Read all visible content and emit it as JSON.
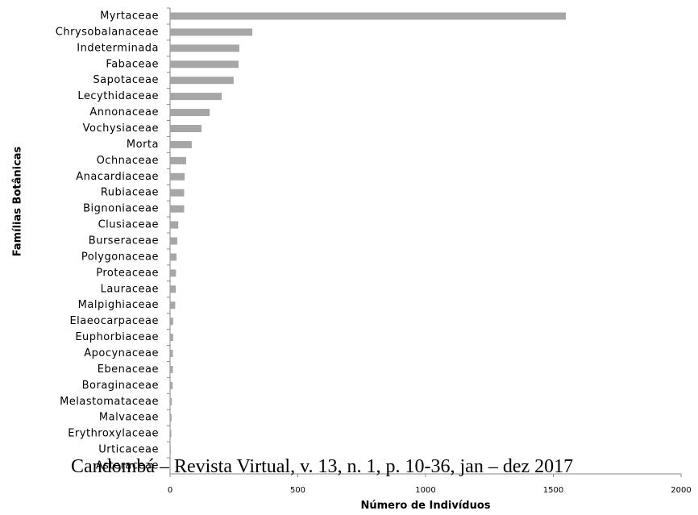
{
  "chart_data": {
    "type": "bar",
    "orientation": "horizontal",
    "x_label": "Número de Indivíduos",
    "y_label": "Famílias Botânicas",
    "categories": [
      "Myrtaceae",
      "Chrysobalanaceae",
      "Indeterminada",
      "Fabaceae",
      "Sapotaceae",
      "Lecythidaceae",
      "Annonaceae",
      "Vochysiaceae",
      "Morta",
      "Ochnaceae",
      "Anacardiaceae",
      "Rubiaceae",
      "Bignoniaceae",
      "Clusiaceae",
      "Burseraceae",
      "Polygonaceae",
      "Proteaceae",
      "Lauraceae",
      "Malpighiaceae",
      "Elaeocarpaceae",
      "Euphorbiaceae",
      "Apocynaceae",
      "Ebenaceae",
      "Boraginaceae",
      "Melastomataceae",
      "Malvaceae",
      "Erythroxylaceae",
      "Urticaceae",
      "Asteraceae"
    ],
    "values": [
      1549,
      322,
      271,
      268,
      249,
      202,
      155,
      123,
      85,
      63,
      57,
      55,
      55,
      32,
      28,
      25,
      23,
      22,
      20,
      12,
      12,
      11,
      11,
      10,
      7,
      6,
      5,
      3,
      2
    ],
    "color": "#a6a6a6",
    "xlim": [
      0,
      2000
    ],
    "xticks": [
      0,
      500,
      1000,
      1500,
      2000
    ],
    "grid": false
  },
  "footer": "Candombá – Revista Virtual, v. 13, n. 1, p. 10-36, jan – dez 2017"
}
